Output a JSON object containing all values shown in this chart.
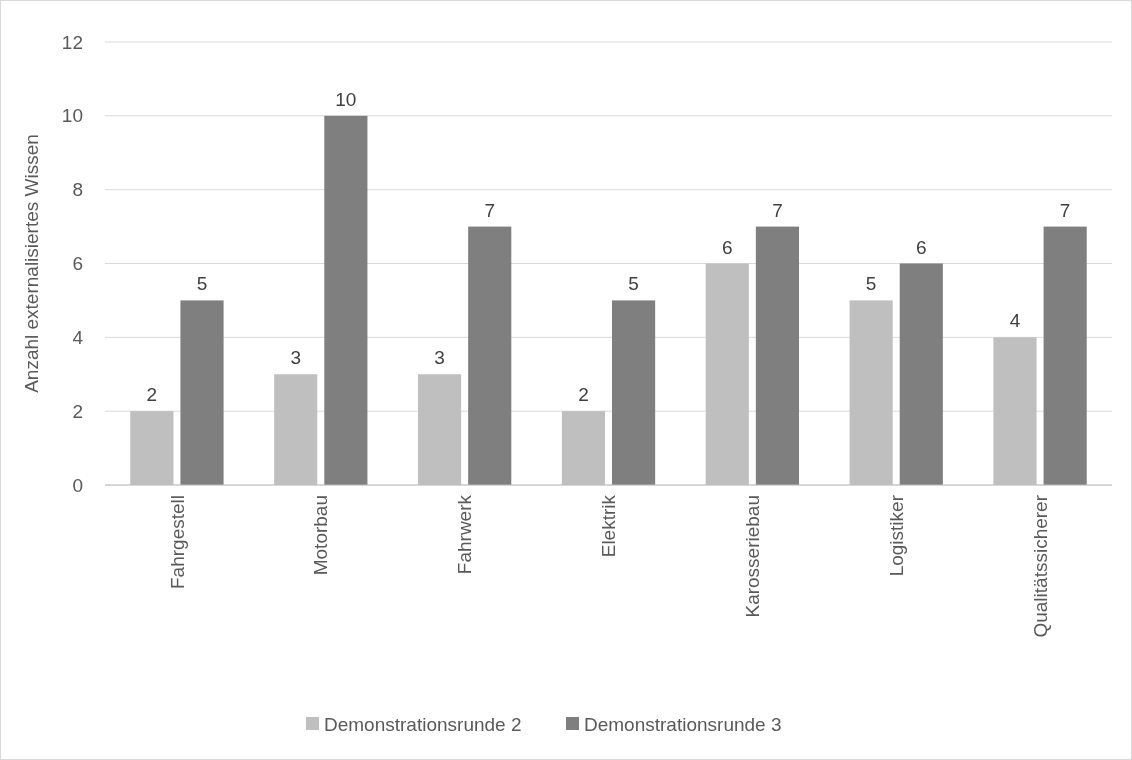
{
  "chart_data": {
    "type": "bar",
    "ylabel": "Anzahl externalisiertes Wissen",
    "categories": [
      "Fahrgestell",
      "Motorbau",
      "Fahrwerk",
      "Elektrik",
      "Karosseriebau",
      "Logistiker",
      "Qualitätssicherer"
    ],
    "series": [
      {
        "name": "Demonstrationsrunde 2",
        "color": "#bfbfbf",
        "values": [
          2,
          3,
          3,
          2,
          6,
          5,
          4
        ]
      },
      {
        "name": "Demonstrationsrunde 3",
        "color": "#7f7f7f",
        "values": [
          5,
          10,
          7,
          5,
          7,
          6,
          7
        ]
      }
    ],
    "ylim": [
      0,
      12
    ],
    "yticks": [
      0,
      2,
      4,
      6,
      8,
      10,
      12
    ],
    "grid": "y",
    "legend": "bottom",
    "data_labels": true
  }
}
